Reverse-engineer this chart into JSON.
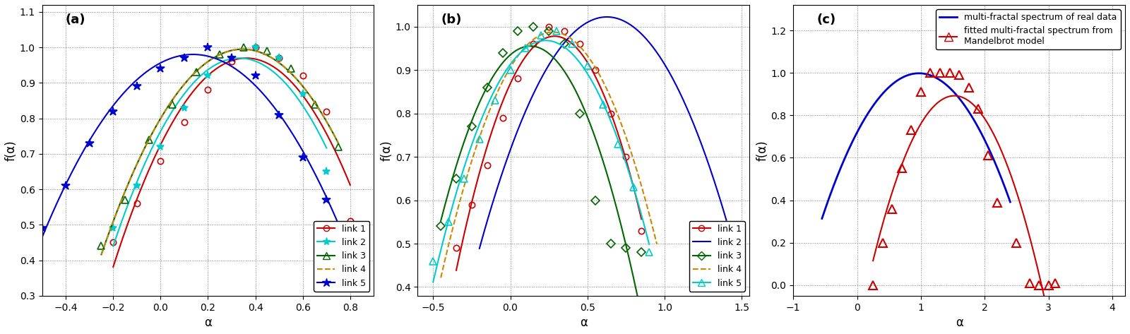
{
  "panel_a": {
    "label": "(a)",
    "xlim": [
      -0.5,
      0.9
    ],
    "ylim": [
      0.3,
      1.12
    ],
    "xticks": [
      -0.4,
      -0.2,
      0.0,
      0.2,
      0.4,
      0.6,
      0.8
    ],
    "yticks": [
      0.3,
      0.4,
      0.5,
      0.6,
      0.7,
      0.8,
      0.9,
      1.0,
      1.1
    ],
    "xlabel": "α",
    "ylabel": "f(α)",
    "links": [
      {
        "name": "link 1",
        "color": "#cc0000",
        "linestyle": "-",
        "marker": "o",
        "markersize": 6,
        "alpha_vals": [
          -0.2,
          -0.1,
          0.0,
          0.1,
          0.2,
          0.3,
          0.4,
          0.5,
          0.6,
          0.7,
          0.8
        ],
        "f_vals": [
          0.45,
          0.56,
          0.68,
          0.79,
          0.88,
          0.96,
          1.0,
          0.97,
          0.92,
          0.82,
          0.51
        ]
      },
      {
        "name": "link 2",
        "color": "#00cccc",
        "linestyle": "-",
        "marker": "*",
        "markersize": 8,
        "alpha_vals": [
          -0.2,
          -0.1,
          0.0,
          0.1,
          0.2,
          0.3,
          0.4,
          0.5,
          0.6,
          0.7
        ],
        "f_vals": [
          0.49,
          0.61,
          0.72,
          0.83,
          0.92,
          0.97,
          1.0,
          0.97,
          0.87,
          0.65
        ]
      },
      {
        "name": "link 3",
        "color": "#006600",
        "linestyle": "-",
        "marker": "^",
        "markersize": 7,
        "alpha_vals": [
          -0.25,
          -0.15,
          -0.05,
          0.05,
          0.15,
          0.25,
          0.35,
          0.45,
          0.55,
          0.65,
          0.75
        ],
        "f_vals": [
          0.44,
          0.57,
          0.74,
          0.84,
          0.93,
          0.98,
          1.0,
          0.99,
          0.94,
          0.84,
          0.72
        ]
      },
      {
        "name": "link 4",
        "color": "#cc8800",
        "linestyle": "--",
        "marker": "",
        "markersize": 0,
        "alpha_vals": [
          -0.25,
          -0.15,
          -0.05,
          0.05,
          0.15,
          0.25,
          0.35,
          0.45,
          0.55,
          0.65,
          0.75
        ],
        "f_vals": [
          0.44,
          0.57,
          0.74,
          0.84,
          0.93,
          0.98,
          1.0,
          0.99,
          0.94,
          0.84,
          0.72
        ]
      },
      {
        "name": "link 5",
        "color": "#0000cc",
        "linestyle": "-",
        "marker": "*",
        "markersize": 9,
        "alpha_vals": [
          -0.5,
          -0.4,
          -0.3,
          -0.2,
          -0.1,
          0.0,
          0.1,
          0.2,
          0.3,
          0.4,
          0.5,
          0.6,
          0.7,
          0.8
        ],
        "f_vals": [
          0.49,
          0.61,
          0.73,
          0.82,
          0.89,
          0.94,
          0.97,
          1.0,
          0.97,
          0.92,
          0.81,
          0.69,
          0.57,
          0.42
        ]
      }
    ]
  },
  "panel_b": {
    "label": "(b)",
    "xlim": [
      -0.6,
      1.55
    ],
    "ylim": [
      0.38,
      1.05
    ],
    "xticks": [
      -0.5,
      0.0,
      0.5,
      1.0,
      1.5
    ],
    "yticks": [
      0.4,
      0.5,
      0.6,
      0.7,
      0.8,
      0.9,
      1.0
    ],
    "xlabel": "α",
    "ylabel": "f(α)",
    "links": [
      {
        "name": "link 1",
        "color": "#cc0000",
        "linestyle": "-",
        "marker": "o",
        "markersize": 6,
        "alpha_vals": [
          -0.35,
          -0.25,
          -0.15,
          -0.05,
          0.05,
          0.15,
          0.25,
          0.35,
          0.45,
          0.55,
          0.65,
          0.75,
          0.85
        ],
        "f_vals": [
          0.49,
          0.59,
          0.68,
          0.79,
          0.88,
          0.96,
          1.0,
          0.99,
          0.96,
          0.9,
          0.8,
          0.7,
          0.53
        ]
      },
      {
        "name": "link 2",
        "color": "#0000cc",
        "linestyle": "-",
        "marker": "",
        "markersize": 0,
        "alpha_vals": [
          -0.2,
          0.0,
          0.2,
          0.4,
          0.6,
          0.8,
          1.0,
          1.2,
          1.4
        ],
        "f_vals": [
          0.5,
          0.71,
          0.88,
          0.98,
          1.0,
          0.98,
          0.94,
          0.82,
          0.51
        ]
      },
      {
        "name": "link 3",
        "color": "#006600",
        "linestyle": "-",
        "marker": "D",
        "markersize": 6,
        "alpha_vals": [
          -0.45,
          -0.35,
          -0.25,
          -0.15,
          -0.05,
          0.05,
          0.15,
          0.25,
          0.35,
          0.45,
          0.55,
          0.65,
          0.75,
          0.85
        ],
        "f_vals": [
          0.54,
          0.65,
          0.77,
          0.86,
          0.94,
          0.99,
          1.0,
          0.99,
          0.96,
          0.8,
          0.6,
          0.5,
          0.49,
          0.48
        ]
      },
      {
        "name": "link 4",
        "color": "#cc8800",
        "linestyle": "--",
        "marker": "",
        "markersize": 0,
        "alpha_vals": [
          -0.45,
          -0.35,
          -0.25,
          -0.15,
          -0.05,
          0.05,
          0.15,
          0.25,
          0.35,
          0.45,
          0.55,
          0.65,
          0.75,
          0.85,
          0.95
        ],
        "f_vals": [
          0.42,
          0.55,
          0.68,
          0.79,
          0.89,
          0.96,
          1.0,
          1.0,
          0.97,
          0.94,
          0.88,
          0.81,
          0.73,
          0.64,
          0.53
        ]
      },
      {
        "name": "link 5",
        "color": "#00cccc",
        "linestyle": "-",
        "marker": "^",
        "markersize": 7,
        "alpha_vals": [
          -0.5,
          -0.4,
          -0.3,
          -0.2,
          -0.1,
          0.0,
          0.1,
          0.2,
          0.3,
          0.4,
          0.5,
          0.6,
          0.7,
          0.8,
          0.9
        ],
        "f_vals": [
          0.46,
          0.55,
          0.65,
          0.74,
          0.83,
          0.9,
          0.95,
          0.98,
          0.99,
          0.96,
          0.91,
          0.82,
          0.73,
          0.63,
          0.48
        ]
      }
    ]
  },
  "panel_c": {
    "label": "(c)",
    "xlim": [
      -1.0,
      4.2
    ],
    "ylim": [
      -0.05,
      1.32
    ],
    "xticks": [
      -1,
      0,
      1,
      2,
      3,
      4
    ],
    "yticks": [
      0.0,
      0.2,
      0.4,
      0.6,
      0.8,
      1.0,
      1.2
    ],
    "xlabel": "α",
    "ylabel": "f(α)",
    "line_real": {
      "name": "multi-fractal spectrum of real data",
      "color": "#0000cc",
      "linestyle": "-",
      "alpha_vals": [
        -0.55,
        -0.4,
        -0.2,
        0.0,
        0.2,
        0.4,
        0.6,
        0.8,
        1.0,
        1.2,
        1.4,
        1.6,
        1.8,
        2.0,
        2.2,
        2.4
      ],
      "f_vals": [
        0.36,
        0.46,
        0.57,
        0.68,
        0.79,
        0.89,
        0.95,
        0.99,
        1.0,
        0.99,
        0.96,
        0.91,
        0.82,
        0.7,
        0.54,
        0.35
      ]
    },
    "line_mandel": {
      "name": "fitted multi-fractal spectrum from\nMandelbrot model",
      "color": "#cc0000",
      "linestyle": "-",
      "marker": "^",
      "markersize": 8,
      "alpha_vals": [
        0.25,
        0.4,
        0.55,
        0.7,
        0.85,
        1.0,
        1.15,
        1.3,
        1.45,
        1.6,
        1.75,
        1.9,
        2.05,
        2.2,
        2.5,
        2.7,
        2.85,
        3.0,
        3.1
      ],
      "f_vals": [
        0.0,
        0.2,
        0.36,
        0.55,
        0.73,
        0.91,
        1.0,
        1.0,
        1.0,
        0.99,
        0.93,
        0.83,
        0.61,
        0.39,
        0.2,
        0.01,
        0.0,
        0.0,
        0.01
      ]
    }
  }
}
